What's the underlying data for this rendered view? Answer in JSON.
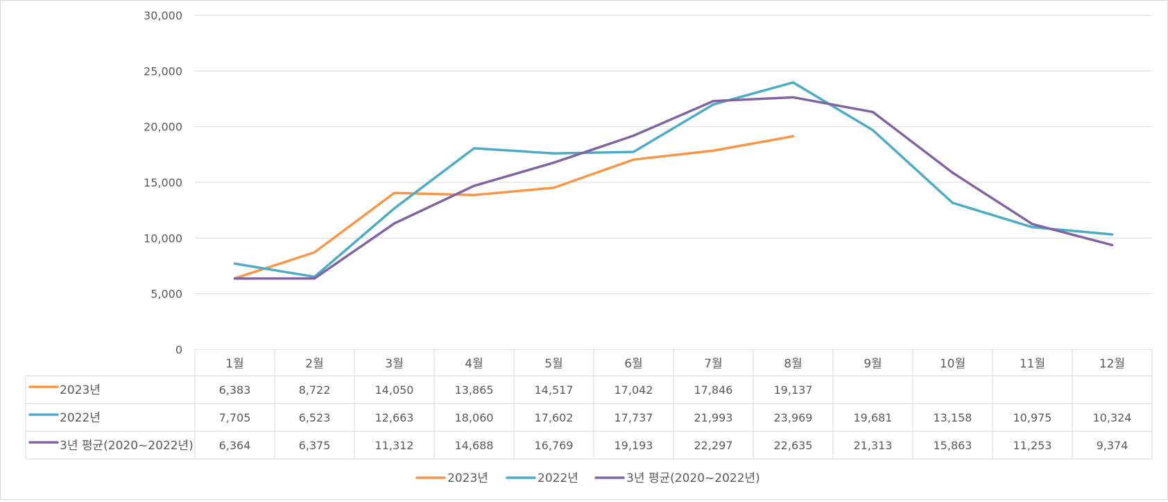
{
  "chart_data": {
    "type": "line",
    "title": "",
    "xlabel": "",
    "ylabel": "",
    "categories": [
      "1월",
      "2월",
      "3월",
      "4월",
      "5월",
      "6월",
      "7월",
      "8월",
      "9월",
      "10월",
      "11월",
      "12월"
    ],
    "ylim": [
      0,
      30000
    ],
    "yticks": [
      "30,000",
      "25,000",
      "20,000",
      "15,000",
      "10,000",
      "5,000",
      "0"
    ],
    "grid": true,
    "legend": "bottom",
    "data_table": true,
    "series": [
      {
        "name": "2023년",
        "color": "#F79646",
        "values": [
          6383,
          8722,
          14050,
          13865,
          14517,
          17042,
          17846,
          19137,
          null,
          null,
          null,
          null
        ],
        "labels": [
          "6,383",
          "8,722",
          "14,050",
          "13,865",
          "14,517",
          "17,042",
          "17,846",
          "19,137",
          "",
          "",
          "",
          ""
        ]
      },
      {
        "name": "2022년",
        "color": "#4BACC6",
        "values": [
          7705,
          6523,
          12663,
          18060,
          17602,
          17737,
          21993,
          23969,
          19681,
          13158,
          10975,
          10324
        ],
        "labels": [
          "7,705",
          "6,523",
          "12,663",
          "18,060",
          "17,602",
          "17,737",
          "21,993",
          "23,969",
          "19,681",
          "13,158",
          "10,975",
          "10,324"
        ]
      },
      {
        "name": "3년 평균(2020~2022년)",
        "color": "#8064A2",
        "values": [
          6364,
          6375,
          11312,
          14688,
          16769,
          19193,
          22297,
          22635,
          21313,
          15863,
          11253,
          9374
        ],
        "labels": [
          "6,364",
          "6,375",
          "11,312",
          "14,688",
          "16,769",
          "19,193",
          "22,297",
          "22,635",
          "21,313",
          "15,863",
          "11,253",
          "9,374"
        ]
      }
    ]
  }
}
